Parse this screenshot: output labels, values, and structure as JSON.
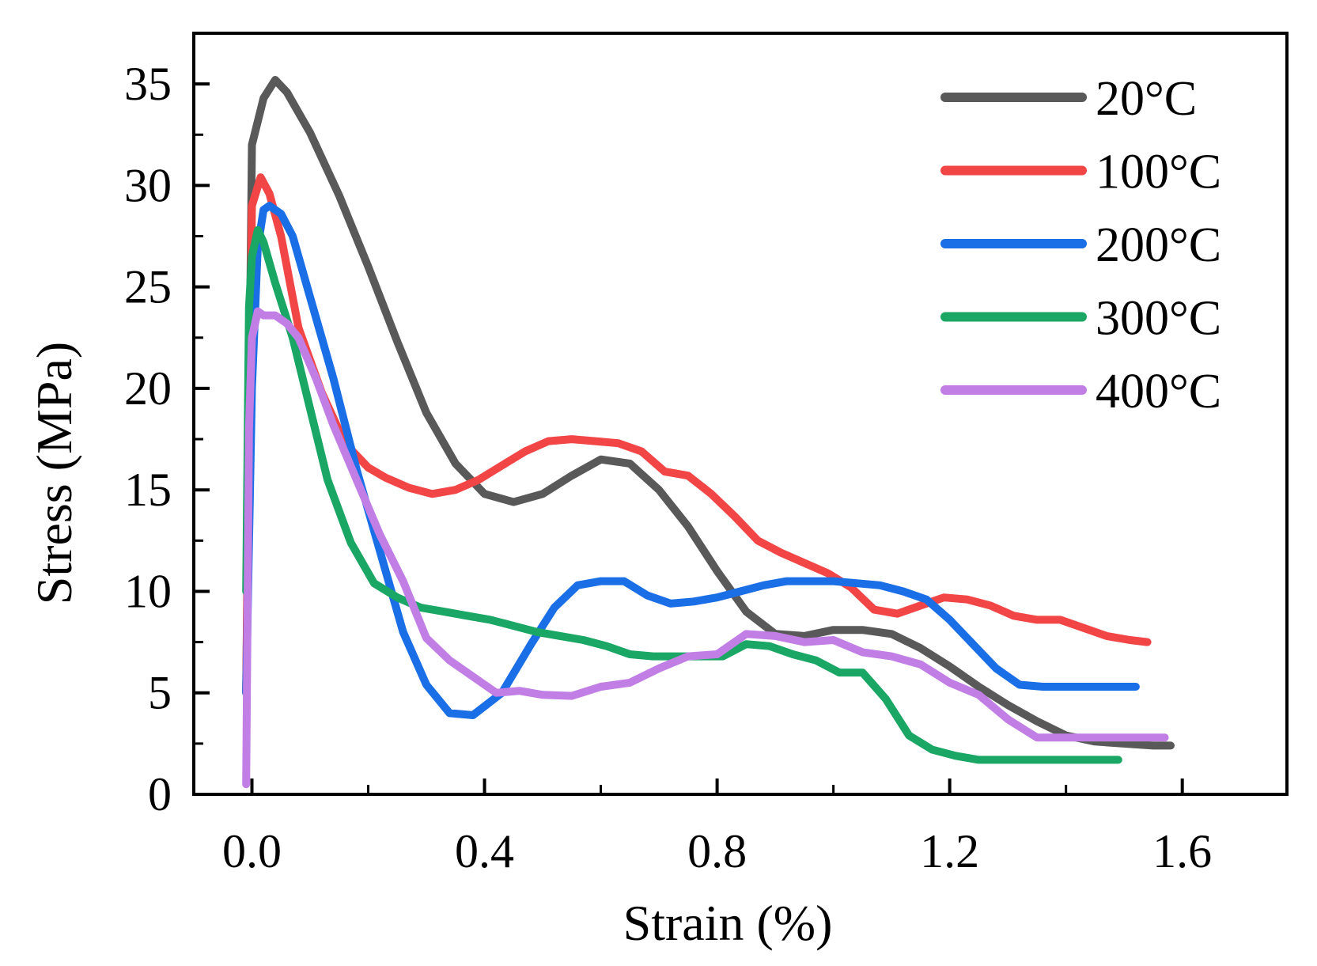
{
  "chart_data": {
    "type": "line",
    "title": "",
    "xlabel": "Strain (%)",
    "ylabel": "Stress (MPa)",
    "xlim": [
      -0.1,
      1.78
    ],
    "ylim": [
      0,
      37.5
    ],
    "xticks": [
      0.0,
      0.4,
      0.8,
      1.2,
      1.6
    ],
    "xtick_labels": [
      "0.0",
      "0.4",
      "0.8",
      "1.2",
      "1.6"
    ],
    "xminor": [
      0.2,
      0.6,
      1.0,
      1.4
    ],
    "yticks": [
      0,
      5,
      10,
      15,
      20,
      25,
      30,
      35
    ],
    "ytick_labels": [
      "0",
      "5",
      "10",
      "15",
      "20",
      "25",
      "30",
      "35"
    ],
    "yminor": [
      2.5,
      7.5,
      12.5,
      17.5,
      22.5,
      27.5,
      32.5
    ],
    "grid": false,
    "legend_position": "top-right",
    "series": [
      {
        "name": "20°C",
        "color": "#595959",
        "x": [
          -0.01,
          0.0,
          0.02,
          0.04,
          0.06,
          0.1,
          0.15,
          0.2,
          0.25,
          0.3,
          0.35,
          0.4,
          0.45,
          0.5,
          0.55,
          0.6,
          0.65,
          0.7,
          0.75,
          0.8,
          0.85,
          0.9,
          0.95,
          1.0,
          1.05,
          1.1,
          1.15,
          1.2,
          1.25,
          1.3,
          1.35,
          1.4,
          1.45,
          1.5,
          1.55,
          1.58
        ],
        "values": [
          5,
          32,
          34.3,
          35.2,
          34.6,
          32.6,
          29.5,
          26,
          22.3,
          18.8,
          16.3,
          14.8,
          14.4,
          14.8,
          15.7,
          16.5,
          16.3,
          15,
          13.2,
          11,
          9,
          7.9,
          7.8,
          8.1,
          8.1,
          7.9,
          7.2,
          6.3,
          5.3,
          4.4,
          3.6,
          2.9,
          2.6,
          2.5,
          2.4,
          2.4
        ]
      },
      {
        "name": "100°C",
        "color": "#f24646",
        "x": [
          -0.01,
          0.0,
          0.015,
          0.03,
          0.05,
          0.08,
          0.12,
          0.16,
          0.2,
          0.23,
          0.27,
          0.31,
          0.35,
          0.39,
          0.43,
          0.47,
          0.51,
          0.55,
          0.59,
          0.63,
          0.67,
          0.71,
          0.75,
          0.79,
          0.83,
          0.87,
          0.91,
          0.95,
          0.99,
          1.03,
          1.07,
          1.11,
          1.15,
          1.19,
          1.23,
          1.27,
          1.31,
          1.35,
          1.39,
          1.43,
          1.47,
          1.51,
          1.54
        ],
        "values": [
          5,
          29,
          30.4,
          29.6,
          27.5,
          23,
          19.8,
          17.3,
          16.1,
          15.6,
          15.1,
          14.8,
          15,
          15.5,
          16.2,
          16.9,
          17.4,
          17.5,
          17.4,
          17.3,
          16.9,
          15.9,
          15.7,
          14.8,
          13.7,
          12.5,
          11.9,
          11.4,
          10.9,
          10.2,
          9.1,
          8.9,
          9.3,
          9.7,
          9.6,
          9.3,
          8.8,
          8.6,
          8.6,
          8.2,
          7.8,
          7.6,
          7.5
        ]
      },
      {
        "name": "200°C",
        "color": "#1a6ee6",
        "x": [
          -0.01,
          0.0,
          0.01,
          0.02,
          0.03,
          0.05,
          0.07,
          0.1,
          0.14,
          0.18,
          0.22,
          0.26,
          0.3,
          0.34,
          0.38,
          0.43,
          0.48,
          0.52,
          0.56,
          0.6,
          0.64,
          0.68,
          0.72,
          0.76,
          0.8,
          0.84,
          0.88,
          0.92,
          0.96,
          1.0,
          1.04,
          1.08,
          1.12,
          1.16,
          1.2,
          1.24,
          1.28,
          1.32,
          1.36,
          1.4,
          1.44,
          1.48,
          1.52
        ],
        "values": [
          5,
          20,
          27,
          28.8,
          29,
          28.6,
          27.5,
          24.5,
          20.5,
          16,
          12,
          8,
          5.4,
          4,
          3.9,
          5,
          7.4,
          9.2,
          10.3,
          10.5,
          10.5,
          9.8,
          9.4,
          9.5,
          9.7,
          10,
          10.3,
          10.5,
          10.5,
          10.5,
          10.4,
          10.3,
          10,
          9.6,
          8.6,
          7.4,
          6.2,
          5.4,
          5.3,
          5.3,
          5.3,
          5.3,
          5.3
        ]
      },
      {
        "name": "300°C",
        "color": "#1aa664",
        "x": [
          -0.01,
          -0.005,
          0.0,
          0.01,
          0.02,
          0.04,
          0.07,
          0.1,
          0.13,
          0.17,
          0.21,
          0.25,
          0.29,
          0.33,
          0.37,
          0.41,
          0.45,
          0.49,
          0.53,
          0.57,
          0.61,
          0.65,
          0.69,
          0.73,
          0.77,
          0.81,
          0.85,
          0.89,
          0.93,
          0.97,
          1.01,
          1.05,
          1.09,
          1.13,
          1.17,
          1.21,
          1.25,
          1.29,
          1.33,
          1.37,
          1.41,
          1.45,
          1.49
        ],
        "values": [
          10,
          24,
          26.5,
          27.8,
          27.2,
          25.2,
          22.5,
          19,
          15.5,
          12.4,
          10.4,
          9.7,
          9.2,
          9,
          8.8,
          8.6,
          8.3,
          8,
          7.8,
          7.6,
          7.3,
          6.9,
          6.8,
          6.8,
          6.8,
          6.8,
          7.4,
          7.3,
          6.9,
          6.6,
          6,
          6,
          4.7,
          2.9,
          2.2,
          1.9,
          1.7,
          1.7,
          1.7,
          1.7,
          1.7,
          1.7,
          1.7
        ]
      },
      {
        "name": "400°C",
        "color": "#c17fe6",
        "x": [
          -0.01,
          -0.005,
          0.0,
          0.01,
          0.02,
          0.04,
          0.06,
          0.08,
          0.11,
          0.14,
          0.18,
          0.22,
          0.26,
          0.3,
          0.34,
          0.38,
          0.42,
          0.46,
          0.5,
          0.55,
          0.6,
          0.65,
          0.7,
          0.75,
          0.8,
          0.85,
          0.9,
          0.95,
          1.0,
          1.05,
          1.1,
          1.15,
          1.2,
          1.25,
          1.3,
          1.35,
          1.4,
          1.45,
          1.5,
          1.55,
          1.57
        ],
        "values": [
          0.5,
          18,
          22.5,
          23.8,
          23.6,
          23.6,
          23.2,
          22.5,
          20.5,
          18.2,
          15.5,
          12.8,
          10.5,
          7.7,
          6.6,
          5.8,
          5,
          5.1,
          4.9,
          4.85,
          5.3,
          5.5,
          6.2,
          6.8,
          6.9,
          7.9,
          7.8,
          7.5,
          7.6,
          7.0,
          6.8,
          6.4,
          5.5,
          4.9,
          3.7,
          2.8,
          2.8,
          2.8,
          2.8,
          2.8,
          2.8
        ]
      }
    ]
  }
}
